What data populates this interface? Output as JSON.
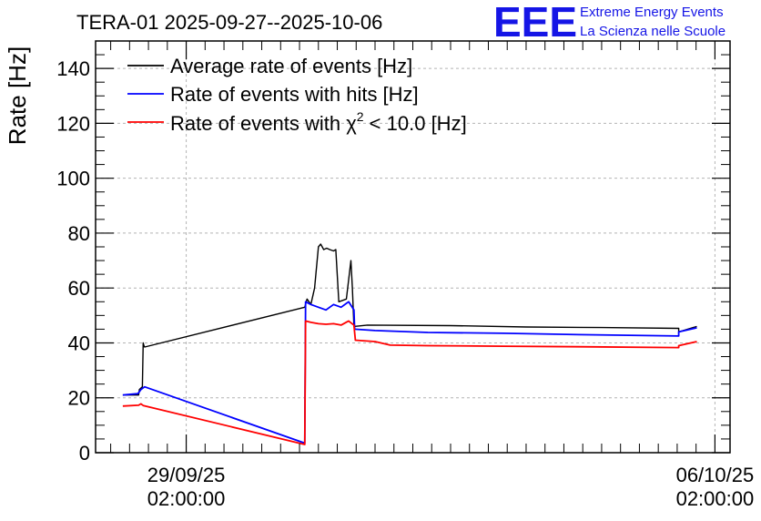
{
  "colors": {
    "average": "#000000",
    "hits": "#0000ff",
    "chi2": "#ff0000",
    "logo": "#1515e6",
    "grid": "#b4b4b4"
  },
  "header": {
    "title": "TERA-01 2025-09-27--2025-10-06",
    "logo_big": "EEE",
    "logo_line1": "Extreme Energy Events",
    "logo_line2": "La Scienza nelle Scuole"
  },
  "legend": {
    "average": "Average rate of events [Hz]",
    "hits": "Rate of events with hits [Hz]",
    "chi2_prefix": "Rate of events with χ",
    "chi2_sup": "2",
    "chi2_suffix": " < 10.0 [Hz]"
  },
  "chart_data": {
    "type": "line",
    "title": "TERA-01 2025-09-27--2025-10-06",
    "ylabel": "Rate [Hz]",
    "xlabel": "",
    "xlim": [
      -1.2,
      7.2
    ],
    "ylim": [
      0,
      150
    ],
    "x_unit": "days since 29/09/25 02:00:00",
    "yticks": [
      0,
      20,
      40,
      60,
      80,
      100,
      120,
      140
    ],
    "xticks": [
      {
        "x": 0,
        "date": "29/09/25",
        "time": "02:00:00"
      },
      {
        "x": 7,
        "date": "06/10/25",
        "time": "02:00:00"
      }
    ],
    "grid": true,
    "legend_position": "top-left",
    "series": [
      {
        "key": "average",
        "name": "Average rate of events [Hz]",
        "points": [
          [
            -0.84,
            21
          ],
          [
            -0.63,
            21
          ],
          [
            -0.62,
            23
          ],
          [
            -0.58,
            24
          ],
          [
            -0.57,
            40
          ],
          [
            -0.56,
            39
          ],
          [
            -0.55,
            38.5
          ],
          [
            1.57,
            53
          ],
          [
            1.6,
            56
          ],
          [
            1.65,
            54
          ],
          [
            1.7,
            60
          ],
          [
            1.75,
            75
          ],
          [
            1.78,
            76
          ],
          [
            1.82,
            74
          ],
          [
            1.86,
            74.5
          ],
          [
            1.9,
            74
          ],
          [
            1.95,
            73.5
          ],
          [
            1.98,
            74
          ],
          [
            2.02,
            55
          ],
          [
            2.12,
            56
          ],
          [
            2.18,
            70
          ],
          [
            2.2,
            60
          ],
          [
            2.22,
            46
          ],
          [
            2.4,
            46.5
          ],
          [
            3.5,
            46.3
          ],
          [
            4.5,
            45.8
          ],
          [
            5.5,
            45.6
          ],
          [
            6.52,
            45.3
          ],
          [
            6.52,
            44
          ],
          [
            6.76,
            46
          ]
        ]
      },
      {
        "key": "hits",
        "name": "Rate of events with hits [Hz]",
        "points": [
          [
            -0.84,
            21
          ],
          [
            -0.64,
            21.5
          ],
          [
            -0.6,
            23
          ],
          [
            -0.55,
            24
          ],
          [
            1.57,
            3.5
          ],
          [
            1.58,
            55
          ],
          [
            1.65,
            54
          ],
          [
            1.75,
            53
          ],
          [
            1.85,
            52
          ],
          [
            1.95,
            54
          ],
          [
            2.05,
            53
          ],
          [
            2.15,
            55
          ],
          [
            2.22,
            52
          ],
          [
            2.23,
            45
          ],
          [
            2.5,
            44.5
          ],
          [
            3.2,
            43.8
          ],
          [
            4.2,
            43.5
          ],
          [
            5.2,
            43
          ],
          [
            6.52,
            42.5
          ],
          [
            6.52,
            44
          ],
          [
            6.76,
            45.5
          ]
        ]
      },
      {
        "key": "chi2",
        "name": "Rate of events with χ2 < 10.0 [Hz]",
        "points": [
          [
            -0.84,
            17
          ],
          [
            -0.63,
            17.3
          ],
          [
            -0.6,
            17.8
          ],
          [
            -0.57,
            17.2
          ],
          [
            1.57,
            3
          ],
          [
            1.58,
            48
          ],
          [
            1.65,
            47.5
          ],
          [
            1.75,
            47
          ],
          [
            1.85,
            46.8
          ],
          [
            1.95,
            47
          ],
          [
            2.05,
            46.5
          ],
          [
            2.15,
            48
          ],
          [
            2.22,
            46.5
          ],
          [
            2.24,
            41
          ],
          [
            2.5,
            40.5
          ],
          [
            2.7,
            39.2
          ],
          [
            3.2,
            39
          ],
          [
            4.2,
            38.8
          ],
          [
            5.2,
            38.6
          ],
          [
            6.52,
            38.3
          ],
          [
            6.52,
            39
          ],
          [
            6.76,
            40.5
          ]
        ]
      }
    ]
  }
}
